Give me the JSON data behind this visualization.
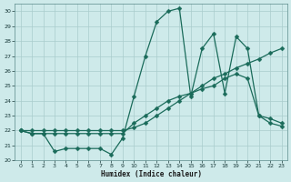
{
  "xlabel": "Humidex (Indice chaleur)",
  "bg_color": "#ceeaea",
  "grid_color": "#b8d8d8",
  "line_color": "#1a6b5a",
  "xlim": [
    -0.5,
    23.5
  ],
  "ylim": [
    20,
    30.5
  ],
  "xticks": [
    0,
    1,
    2,
    3,
    4,
    5,
    6,
    7,
    8,
    9,
    10,
    11,
    12,
    13,
    14,
    15,
    16,
    17,
    18,
    19,
    20,
    21,
    22,
    23
  ],
  "yticks": [
    20,
    21,
    22,
    23,
    24,
    25,
    26,
    27,
    28,
    29,
    30
  ],
  "line1_x": [
    0,
    1,
    2,
    3,
    4,
    5,
    6,
    7,
    8,
    9,
    10,
    11,
    12,
    13,
    14,
    15,
    16,
    17,
    18,
    19,
    20,
    21,
    22,
    23
  ],
  "line1_y": [
    22.0,
    22.0,
    22.0,
    22.0,
    22.0,
    22.0,
    22.0,
    22.0,
    22.0,
    22.0,
    22.2,
    22.5,
    23.0,
    23.5,
    24.0,
    24.5,
    25.0,
    25.5,
    25.8,
    26.2,
    26.5,
    26.8,
    27.2,
    27.5
  ],
  "line2_x": [
    0,
    1,
    2,
    3,
    4,
    5,
    6,
    7,
    8,
    9,
    10,
    11,
    12,
    13,
    14,
    15,
    16,
    17,
    18,
    19,
    20,
    21,
    22,
    23
  ],
  "line2_y": [
    22.0,
    21.8,
    21.8,
    21.8,
    21.8,
    21.8,
    21.8,
    21.8,
    21.8,
    21.8,
    22.5,
    23.0,
    23.5,
    24.0,
    24.3,
    24.5,
    24.8,
    25.0,
    25.5,
    25.8,
    25.5,
    23.0,
    22.8,
    22.5
  ],
  "line3_x": [
    0,
    1,
    2,
    3,
    4,
    5,
    6,
    7,
    8,
    9,
    10,
    11,
    12,
    13,
    14,
    15,
    16,
    17,
    18,
    19,
    20,
    21,
    22,
    23
  ],
  "line3_y": [
    22.0,
    21.8,
    21.8,
    20.6,
    20.8,
    20.8,
    20.8,
    20.8,
    20.4,
    21.5,
    24.3,
    27.0,
    29.3,
    30.0,
    30.2,
    24.3,
    27.5,
    28.5,
    24.5,
    28.3,
    27.5,
    23.0,
    22.5,
    22.3
  ]
}
